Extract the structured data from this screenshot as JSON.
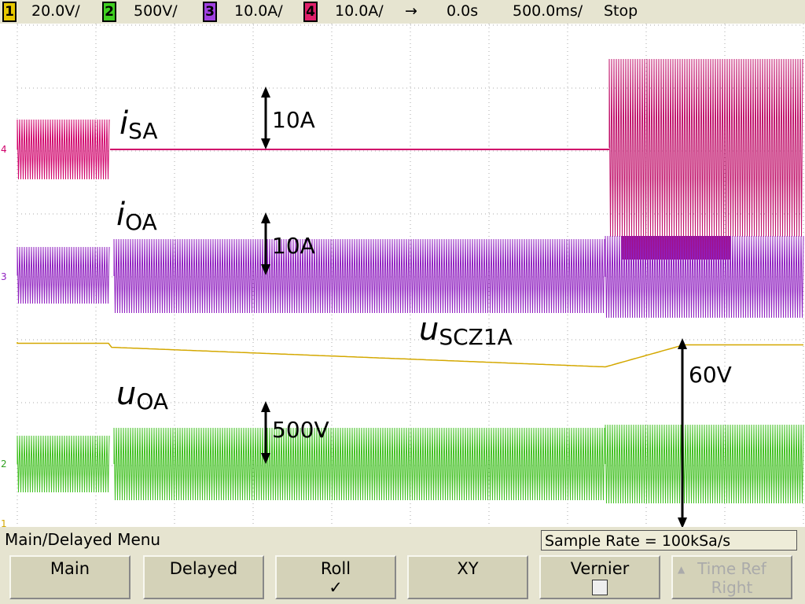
{
  "header": {
    "channels": [
      {
        "number": "1",
        "scale": "20.0V/"
      },
      {
        "number": "2",
        "scale": "500V/"
      },
      {
        "number": "3",
        "scale": "10.0A/"
      },
      {
        "number": "4",
        "scale": "10.0A/"
      }
    ],
    "delay": "0.0s",
    "timebase": "500.0ms/",
    "status": "Stop"
  },
  "channel_markers": [
    "4",
    "3",
    "2",
    "1"
  ],
  "annotations": [
    {
      "symbol": "i",
      "subscript": "SA"
    },
    {
      "symbol": "i",
      "subscript": "OA"
    },
    {
      "symbol": "u",
      "subscript": "SCZ1A"
    },
    {
      "symbol": "u",
      "subscript": "OA"
    }
  ],
  "scale_labels": [
    "10A",
    "10A",
    "500V",
    "60V"
  ],
  "menu": {
    "title": "Main/Delayed Menu",
    "sample_rate": "Sample Rate = 100kSa/s",
    "softkeys": [
      {
        "label": "Main"
      },
      {
        "label": "Delayed"
      },
      {
        "label": "Roll"
      },
      {
        "label": "XY"
      },
      {
        "label": "Vernier"
      },
      {
        "lines": [
          "Time Ref",
          "Right"
        ]
      }
    ]
  }
}
